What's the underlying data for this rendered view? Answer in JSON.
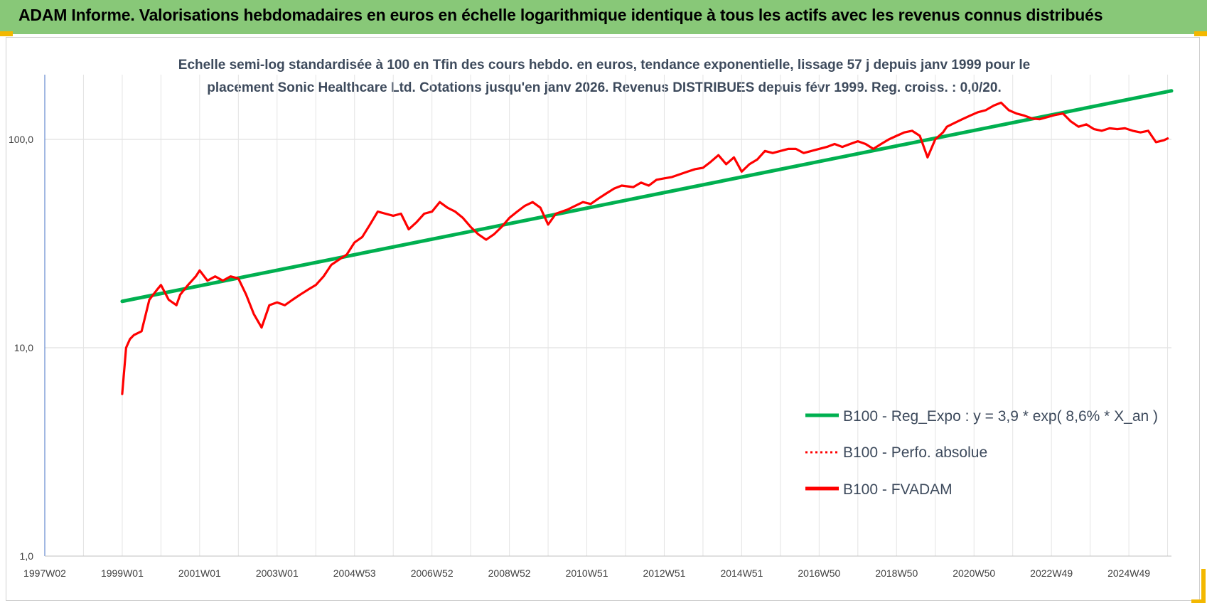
{
  "header": {
    "title": "ADAM Informe. Valorisations hebdomadaires en euros en échelle logarithmique identique à tous les actifs avec les revenus connus distribués"
  },
  "chart_data": {
    "type": "line",
    "title_line1": "Echelle semi-log standardisée à 100 en Tfin des cours hebdo. en euros, tendance exponentielle, lissage 57 j depuis janv 1999 pour le",
    "title_line2": "placement Sonic Healthcare Ltd. Cotations jusqu'en janv 2026.  Revenus DISTRIBUES depuis févr 1999.  Reg. croiss. : 0,0/20.",
    "y_scale": "log",
    "ylim": [
      1,
      180
    ],
    "y_ticks": [
      "100,0",
      "10,0",
      "1,0"
    ],
    "x_range": [
      1997.0,
      2026.1
    ],
    "x_ticks": [
      {
        "label": "1997W02",
        "year": 1997.0
      },
      {
        "label": "1999W01",
        "year": 1999.0
      },
      {
        "label": "2001W01",
        "year": 2001.0
      },
      {
        "label": "2003W01",
        "year": 2003.0
      },
      {
        "label": "2004W53",
        "year": 2005.0
      },
      {
        "label": "2006W52",
        "year": 2007.0
      },
      {
        "label": "2008W52",
        "year": 2009.0
      },
      {
        "label": "2010W51",
        "year": 2011.0
      },
      {
        "label": "2012W51",
        "year": 2013.0
      },
      {
        "label": "2014W51",
        "year": 2015.0
      },
      {
        "label": "2016W50",
        "year": 2017.0
      },
      {
        "label": "2018W50",
        "year": 2019.0
      },
      {
        "label": "2020W50",
        "year": 2021.0
      },
      {
        "label": "2022W49",
        "year": 2023.0
      },
      {
        "label": "2024W49",
        "year": 2025.0
      }
    ],
    "grid": true,
    "legend_position": "bottom-right",
    "series": [
      {
        "name": "B100 - Reg_Expo : y = 3,9 * exp( 8,6% *  X_an )",
        "color": "#00b050",
        "style": "solid",
        "x": [
          1999.0,
          2026.1
        ],
        "y": [
          16.7,
          171
        ]
      },
      {
        "name": "B100 - Perfo. absolue",
        "color": "#ff0000",
        "style": "dotted",
        "x": [],
        "y": []
      },
      {
        "name": "B100 - FVADAM",
        "color": "#ff0000",
        "style": "solid",
        "x": [
          1999.0,
          1999.1,
          1999.2,
          1999.3,
          1999.5,
          1999.7,
          1999.9,
          2000.0,
          2000.2,
          2000.4,
          2000.5,
          2000.7,
          2000.9,
          2001.0,
          2001.2,
          2001.4,
          2001.6,
          2001.8,
          2002.0,
          2002.2,
          2002.4,
          2002.6,
          2002.8,
          2003.0,
          2003.2,
          2003.4,
          2003.6,
          2003.8,
          2004.0,
          2004.2,
          2004.4,
          2004.6,
          2004.8,
          2005.0,
          2005.2,
          2005.4,
          2005.6,
          2005.8,
          2006.0,
          2006.2,
          2006.4,
          2006.6,
          2006.8,
          2007.0,
          2007.2,
          2007.4,
          2007.6,
          2007.8,
          2008.0,
          2008.2,
          2008.4,
          2008.6,
          2008.8,
          2009.0,
          2009.2,
          2009.4,
          2009.6,
          2009.8,
          2010.0,
          2010.2,
          2010.5,
          2010.7,
          2010.9,
          2011.1,
          2011.3,
          2011.5,
          2011.7,
          2011.9,
          2012.2,
          2012.4,
          2012.6,
          2012.8,
          2013.0,
          2013.2,
          2013.4,
          2013.6,
          2013.8,
          2014.0,
          2014.2,
          2014.4,
          2014.6,
          2014.8,
          2015.0,
          2015.2,
          2015.4,
          2015.6,
          2015.8,
          2016.0,
          2016.2,
          2016.4,
          2016.6,
          2016.8,
          2017.0,
          2017.2,
          2017.4,
          2017.6,
          2017.8,
          2018.0,
          2018.2,
          2018.4,
          2018.6,
          2018.8,
          2019.0,
          2019.2,
          2019.4,
          2019.6,
          2019.8,
          2020.0,
          2020.2,
          2020.3,
          2020.5,
          2020.7,
          2020.9,
          2021.1,
          2021.3,
          2021.5,
          2021.7,
          2021.9,
          2022.1,
          2022.3,
          2022.5,
          2022.7,
          2022.9,
          2023.1,
          2023.3,
          2023.5,
          2023.7,
          2023.9,
          2024.1,
          2024.3,
          2024.5,
          2024.7,
          2024.9,
          2025.1,
          2025.3,
          2025.5,
          2025.7,
          2025.9,
          2026.0
        ],
        "y": [
          6.0,
          10.0,
          11.0,
          11.5,
          12.0,
          17.0,
          19.0,
          20.0,
          17.0,
          16.0,
          18.0,
          20.0,
          22.0,
          23.5,
          21.0,
          22.0,
          21.0,
          22.0,
          21.5,
          18.0,
          14.5,
          12.5,
          16.0,
          16.5,
          16.0,
          17.0,
          18.0,
          19.0,
          20.0,
          22.0,
          25.0,
          26.5,
          28.0,
          32.0,
          34.0,
          39.0,
          45.0,
          44.0,
          43.0,
          44.0,
          37.0,
          40.0,
          44.0,
          45.0,
          50.0,
          47.0,
          45.0,
          42.0,
          38.0,
          35.0,
          33.0,
          35.0,
          38.0,
          42.0,
          45.0,
          48.0,
          50.0,
          47.0,
          39.0,
          44.0,
          46.0,
          48.0,
          50.0,
          49.0,
          52.0,
          55.0,
          58.0,
          60.0,
          59.0,
          62.0,
          60.0,
          64.0,
          65.0,
          66.0,
          68.0,
          70.0,
          72.0,
          73.0,
          78.0,
          84.0,
          76.0,
          82.0,
          70.0,
          76.0,
          80.0,
          88.0,
          86.0,
          88.0,
          90.0,
          90.0,
          86.0,
          88.0,
          90.0,
          92.0,
          95.0,
          92.0,
          95.0,
          98.0,
          95.0,
          90.0,
          95.0,
          100.0,
          104.0,
          108.0,
          110.0,
          104.0,
          82.0,
          100.0,
          108.0,
          115.0,
          120.0,
          125.0,
          130.0,
          135.0,
          138.0,
          145.0,
          150.0,
          138.0,
          133.0,
          130.0,
          126.0,
          125.0,
          128.0,
          131.0,
          133.0,
          122.0,
          115.0,
          118.0,
          112.0,
          110.0,
          113.0,
          112.0,
          113.0,
          110.0,
          108.0,
          110.0,
          97.0,
          99.0,
          101.0
        ]
      }
    ]
  }
}
